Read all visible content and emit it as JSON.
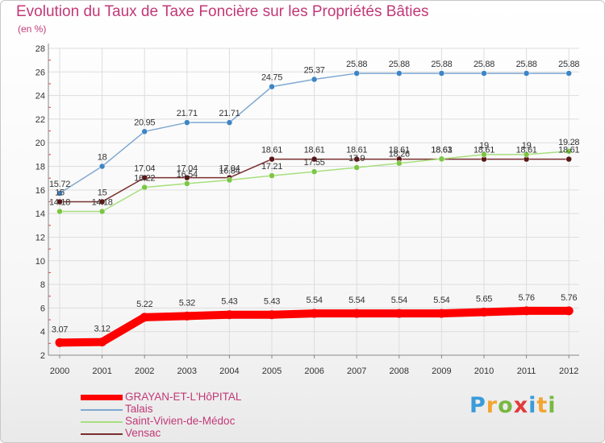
{
  "title": "Evolution du Taux de Taxe Foncière sur les Propriétés Bâties",
  "subtitle": "(en %)",
  "brand": {
    "text": "Proxiti",
    "letters": [
      {
        "ch": "P",
        "color": "#3a9bd9"
      },
      {
        "ch": "r",
        "color": "#f2a531"
      },
      {
        "ch": "o",
        "color": "#78b843"
      },
      {
        "ch": "x",
        "color": "#e23a3a"
      },
      {
        "ch": "i",
        "color": "#3a9bd9"
      },
      {
        "ch": "t",
        "color": "#f2a531"
      },
      {
        "ch": "i",
        "color": "#78b843"
      }
    ]
  },
  "chart_data": {
    "type": "line",
    "x": [
      "2000",
      "2001",
      "2002",
      "2003",
      "2004",
      "2005",
      "2006",
      "2007",
      "2008",
      "2009",
      "2010",
      "2011",
      "2012"
    ],
    "ylim": [
      2,
      28
    ],
    "yticks": [
      2,
      4,
      6,
      8,
      10,
      12,
      14,
      16,
      18,
      20,
      22,
      24,
      26,
      28
    ],
    "grid": true,
    "legend_position": "bottom-left",
    "series": [
      {
        "name": "GRAYAN-ET-L'HôPITAL",
        "color": "#ff0000",
        "marker": "#ff0000",
        "thick": true,
        "values": [
          3.07,
          3.12,
          5.22,
          5.32,
          5.43,
          5.43,
          5.54,
          5.54,
          5.54,
          5.54,
          5.65,
          5.76,
          5.76
        ],
        "labels": [
          "3.07",
          "3.12",
          "5.22",
          "5.32",
          "5.43",
          "5.43",
          "5.54",
          "5.54",
          "5.54",
          "5.54",
          "5.65",
          "5.76",
          "5.76"
        ]
      },
      {
        "name": "Talais",
        "color": "#7fa8d2",
        "marker": "#3d85c6",
        "thick": false,
        "values": [
          15.72,
          18,
          20.95,
          21.71,
          21.71,
          24.75,
          25.37,
          25.88,
          25.88,
          25.88,
          25.88,
          25.88,
          25.88
        ],
        "labels": [
          "15.72",
          "18",
          "20.95",
          "21.71",
          "21.71",
          "24.75",
          "25.37",
          "25.88",
          "25.88",
          "25.88",
          "25.88",
          "25.88",
          "25.88"
        ]
      },
      {
        "name": "Saint-Vivien-de-Médoc",
        "color": "#a8df7d",
        "marker": "#7cc644",
        "thick": false,
        "values": [
          14.18,
          14.18,
          16.22,
          16.54,
          16.84,
          17.21,
          17.55,
          17.9,
          18.26,
          18.63,
          19,
          19,
          19.28
        ],
        "labels": [
          "14.18",
          "14.18",
          "16.22",
          "16.54",
          "16.84",
          "17.21",
          "17.55",
          "17.9",
          "18.26",
          "18.63",
          "19",
          "19",
          "19.28"
        ]
      },
      {
        "name": "Vensac",
        "color": "#7a2e2e",
        "marker": "#5a1616",
        "thick": false,
        "values": [
          15,
          15,
          17.04,
          17.04,
          17.04,
          18.61,
          18.61,
          18.61,
          18.61,
          18.61,
          18.61,
          18.61,
          18.61
        ],
        "labels": [
          "15",
          "15",
          "17.04",
          "17.04",
          "17.04",
          "18.61",
          "18.61",
          "18.61",
          "18.61",
          "18.61",
          "18.61",
          "18.61",
          "18.61"
        ]
      }
    ]
  }
}
